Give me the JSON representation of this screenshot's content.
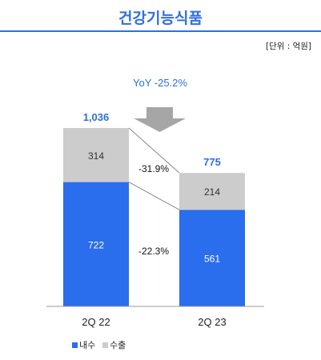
{
  "header": {
    "title": "건강기능식품",
    "unit": "[단위 : 억원]"
  },
  "colors": {
    "accent": "#2f6fe0",
    "domestic": "#2a6ded",
    "export": "#cccccc",
    "arrow": "#a6a6a6"
  },
  "chart_data": {
    "type": "bar",
    "stacked": true,
    "categories": [
      "2Q 22",
      "2Q 23"
    ],
    "series": [
      {
        "name": "내수",
        "values": [
          722,
          561
        ]
      },
      {
        "name": "수출",
        "values": [
          314,
          214
        ]
      }
    ],
    "totals": [
      "1,036",
      "775"
    ],
    "ylim": [
      0,
      1100
    ],
    "legend_position": "bottom-left",
    "grid": false,
    "annotations": {
      "yoy": "YoY -25.2%",
      "export_change": "-31.9%",
      "domestic_change": "-22.3%"
    }
  }
}
